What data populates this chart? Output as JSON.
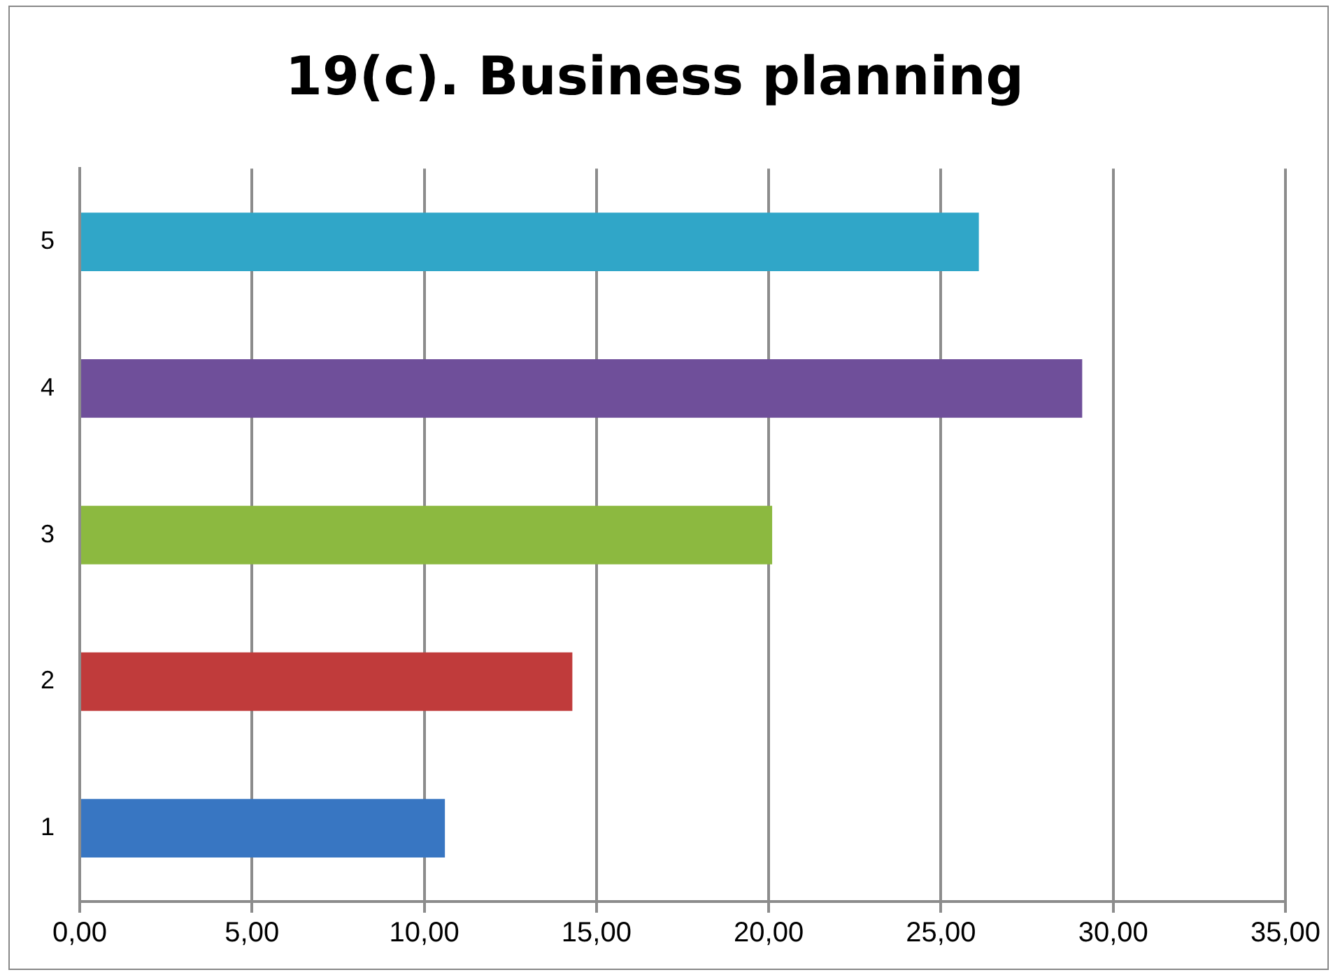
{
  "chart_data": {
    "type": "bar",
    "orientation": "horizontal",
    "title": "19(c). Business planning",
    "categories": [
      "5",
      "4",
      "3",
      "2",
      "1"
    ],
    "values": [
      26.1,
      29.1,
      20.1,
      14.3,
      10.6
    ],
    "colors": [
      "#30a6c8",
      "#6f4f9a",
      "#8cb940",
      "#c03b3b",
      "#3876c2"
    ],
    "xlim": [
      0,
      35
    ],
    "xticks": [
      {
        "value": 0,
        "label": "0,00"
      },
      {
        "value": 5,
        "label": "5,00"
      },
      {
        "value": 10,
        "label": "10,00"
      },
      {
        "value": 15,
        "label": "15,00"
      },
      {
        "value": 20,
        "label": "20,00"
      },
      {
        "value": 25,
        "label": "25,00"
      },
      {
        "value": 30,
        "label": "30,00"
      },
      {
        "value": 35,
        "label": "35,00"
      }
    ],
    "grid": "x",
    "legend": false
  }
}
